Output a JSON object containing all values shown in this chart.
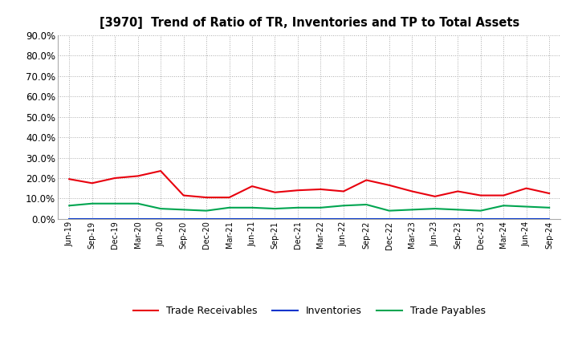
{
  "title": "[3970]  Trend of Ratio of TR, Inventories and TP to Total Assets",
  "x_labels": [
    "Jun-19",
    "Sep-19",
    "Dec-19",
    "Mar-20",
    "Jun-20",
    "Sep-20",
    "Dec-20",
    "Mar-21",
    "Jun-21",
    "Sep-21",
    "Dec-21",
    "Mar-22",
    "Jun-22",
    "Sep-22",
    "Dec-22",
    "Mar-23",
    "Jun-23",
    "Sep-23",
    "Dec-23",
    "Mar-24",
    "Jun-24",
    "Sep-24"
  ],
  "trade_receivables": [
    19.5,
    17.5,
    20.0,
    21.0,
    23.5,
    11.5,
    10.5,
    10.5,
    16.0,
    13.0,
    14.0,
    14.5,
    13.5,
    19.0,
    16.5,
    13.5,
    11.0,
    13.5,
    11.5,
    11.5,
    15.0,
    12.5
  ],
  "inventories": [
    0.1,
    0.1,
    0.1,
    0.1,
    0.1,
    0.1,
    0.1,
    0.1,
    0.1,
    0.1,
    0.1,
    0.1,
    0.1,
    0.1,
    0.1,
    0.1,
    0.1,
    0.1,
    0.1,
    0.1,
    0.1,
    0.1
  ],
  "trade_payables": [
    6.5,
    7.5,
    7.5,
    7.5,
    5.0,
    4.5,
    4.0,
    5.5,
    5.5,
    5.0,
    5.5,
    5.5,
    6.5,
    7.0,
    4.0,
    4.5,
    5.0,
    4.5,
    4.0,
    6.5,
    6.0,
    5.5
  ],
  "tr_color": "#e8000d",
  "inv_color": "#0033cc",
  "tp_color": "#00a550",
  "ylim": [
    0.0,
    90.0
  ],
  "yticks": [
    0.0,
    10.0,
    20.0,
    30.0,
    40.0,
    50.0,
    60.0,
    70.0,
    80.0,
    90.0
  ],
  "legend_labels": [
    "Trade Receivables",
    "Inventories",
    "Trade Payables"
  ],
  "background_color": "#ffffff",
  "grid_color": "#aaaaaa"
}
